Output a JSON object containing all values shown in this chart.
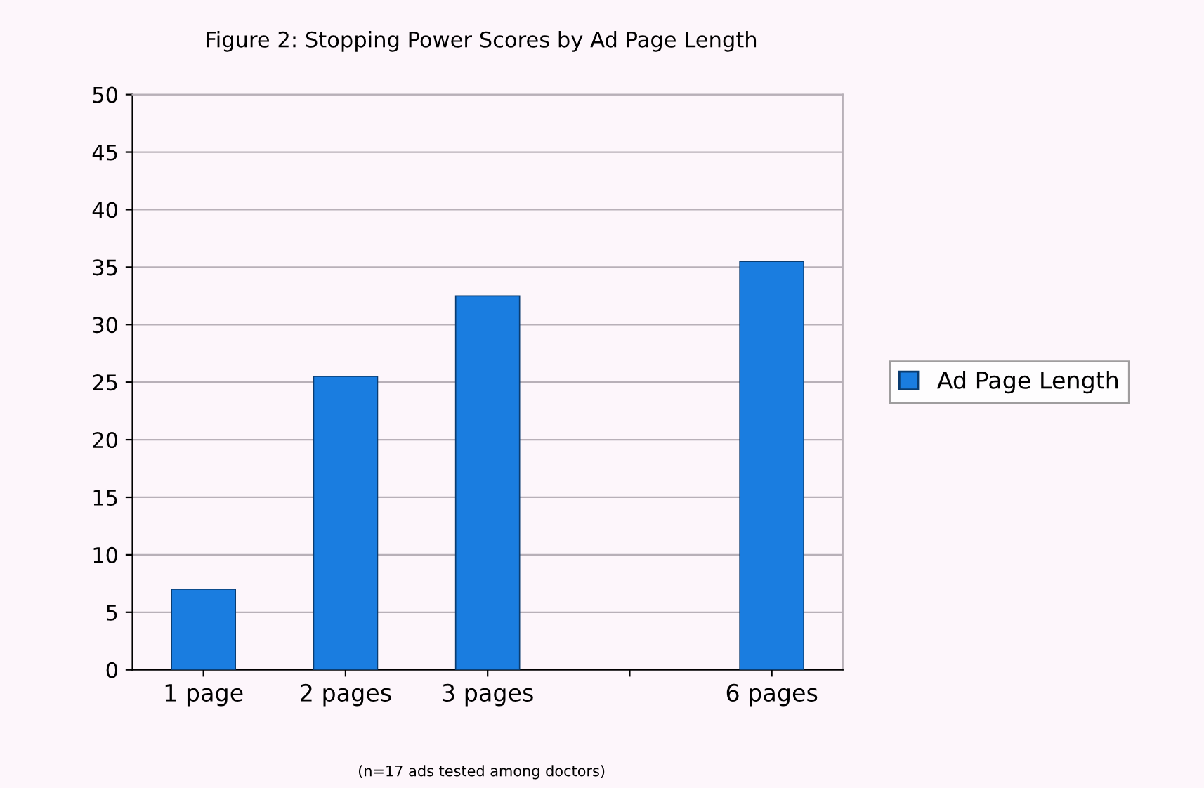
{
  "chart_data": {
    "type": "bar",
    "title": "Figure 2: Stopping Power Scores by Ad Page Length",
    "categories": [
      "1 page",
      "2 pages",
      "3 pages",
      null,
      "6 pages"
    ],
    "series": [
      {
        "name": "Ad Page Length",
        "color": "#1a7de0",
        "values": [
          7,
          25.5,
          32.5,
          null,
          35.5
        ]
      }
    ],
    "ylim": [
      0,
      50
    ],
    "yticks": [
      0,
      5,
      10,
      15,
      20,
      25,
      30,
      35,
      40,
      45,
      50
    ],
    "grid": "y",
    "legend": "right",
    "annotations": [
      "(n=17 ads tested among doctors)"
    ]
  }
}
